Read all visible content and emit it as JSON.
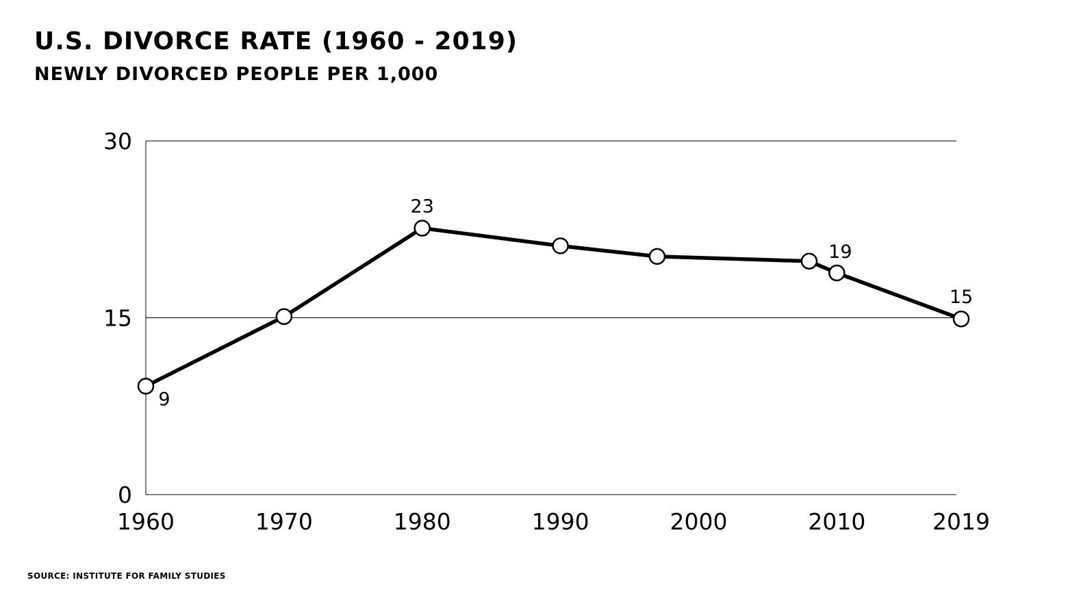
{
  "header": {
    "title": "U.S. DIVORCE RATE (1960 - 2019)",
    "subtitle": "NEWLY DIVORCED PEOPLE PER 1,000"
  },
  "footer": {
    "source": "SOURCE: INSTITUTE FOR FAMILY STUDIES"
  },
  "chart_data": {
    "type": "line",
    "title": "U.S. DIVORCE RATE (1960 - 2019)",
    "subtitle": "NEWLY DIVORCED PEOPLE PER 1,000",
    "xlabel": "",
    "ylabel": "",
    "xlim": [
      1960,
      2019
    ],
    "ylim": [
      0,
      30
    ],
    "x_ticks": [
      1960,
      1970,
      1980,
      1990,
      2000,
      2010,
      2019
    ],
    "y_ticks": [
      0,
      15,
      30
    ],
    "gridlines_y": [
      15,
      30
    ],
    "line_color": "#000000",
    "marker_fill": "#ffffff",
    "series": [
      {
        "points": [
          {
            "x": 1960,
            "y": 9.2,
            "label": "9"
          },
          {
            "x": 1970,
            "y": 15.1
          },
          {
            "x": 1980,
            "y": 22.6,
            "label": "23"
          },
          {
            "x": 1990,
            "y": 21.1
          },
          {
            "x": 1997,
            "y": 20.2
          },
          {
            "x": 2008,
            "y": 19.8
          },
          {
            "x": 2010,
            "y": 18.8,
            "label": "19"
          },
          {
            "x": 2019,
            "y": 14.9,
            "label": "15"
          }
        ]
      }
    ]
  }
}
